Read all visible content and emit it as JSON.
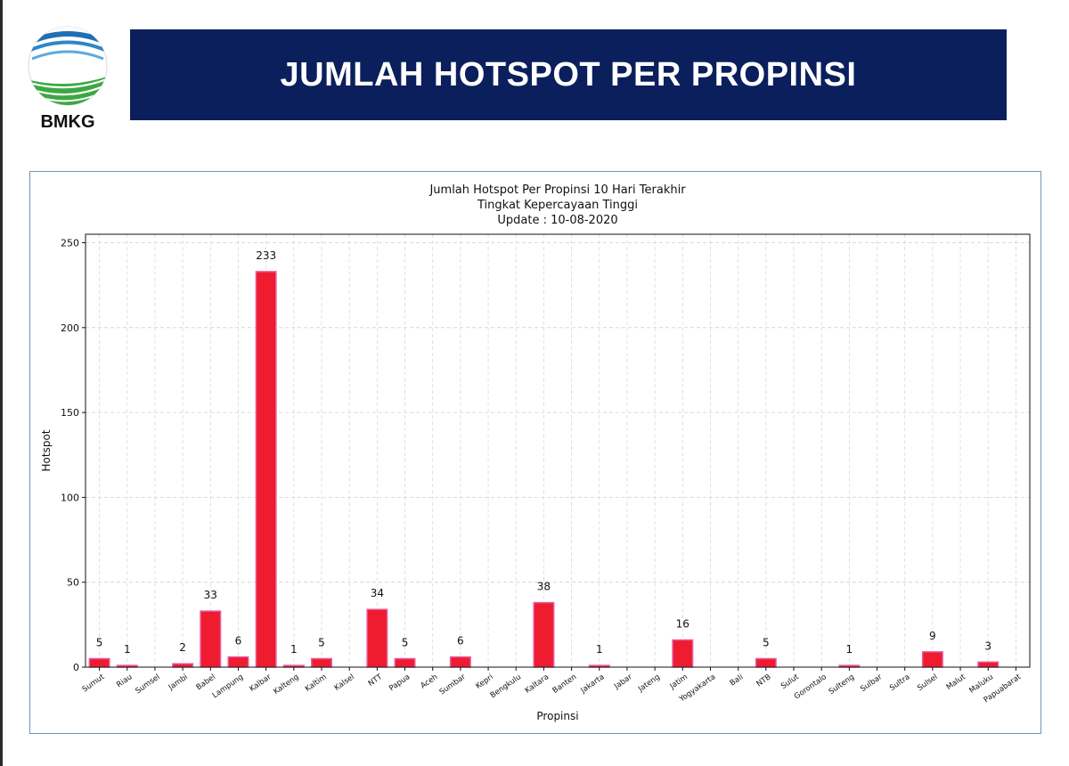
{
  "logo": {
    "text": "BMKG",
    "icon": "bmkg-logo"
  },
  "banner": {
    "title": "JUMLAH HOTSPOT PER PROPINSI",
    "bg_color": "#0a1f5c"
  },
  "chart_data": {
    "type": "bar",
    "title_lines": [
      "Jumlah Hotspot Per Propinsi 10 Hari Terakhir",
      "Tingkat Kepercayaan Tinggi",
      "Update : 10-08-2020"
    ],
    "xlabel": "Propinsi",
    "ylabel": "Hotspot",
    "ylim": [
      0,
      255
    ],
    "yticks": [
      0,
      50,
      100,
      150,
      200,
      250
    ],
    "grid": true,
    "bar_color": "#ee1c2e",
    "bar_edge_color": "#e75aa0",
    "categories": [
      "Sumut",
      "Riau",
      "Sumsel",
      "Jambi",
      "Babel",
      "Lampung",
      "Kalbar",
      "Kalteng",
      "Kaltim",
      "Kalsel",
      "NTT",
      "Papua",
      "Aceh",
      "Sumbar",
      "Kepri",
      "Bengkulu",
      "Kaltara",
      "Banten",
      "Jakarta",
      "Jabar",
      "Jateng",
      "Jatim",
      "Yogyakarta",
      "Bali",
      "NTB",
      "Sulut",
      "Gorontalo",
      "Sulteng",
      "Sulbar",
      "Sultra",
      "Sulsel",
      "Malut",
      "Maluku",
      "Papuabarat"
    ],
    "values": [
      5,
      1,
      0,
      2,
      33,
      6,
      233,
      1,
      5,
      0,
      34,
      5,
      0,
      6,
      0,
      0,
      38,
      0,
      1,
      0,
      0,
      16,
      0,
      0,
      5,
      0,
      0,
      1,
      0,
      0,
      9,
      0,
      3,
      0
    ]
  }
}
